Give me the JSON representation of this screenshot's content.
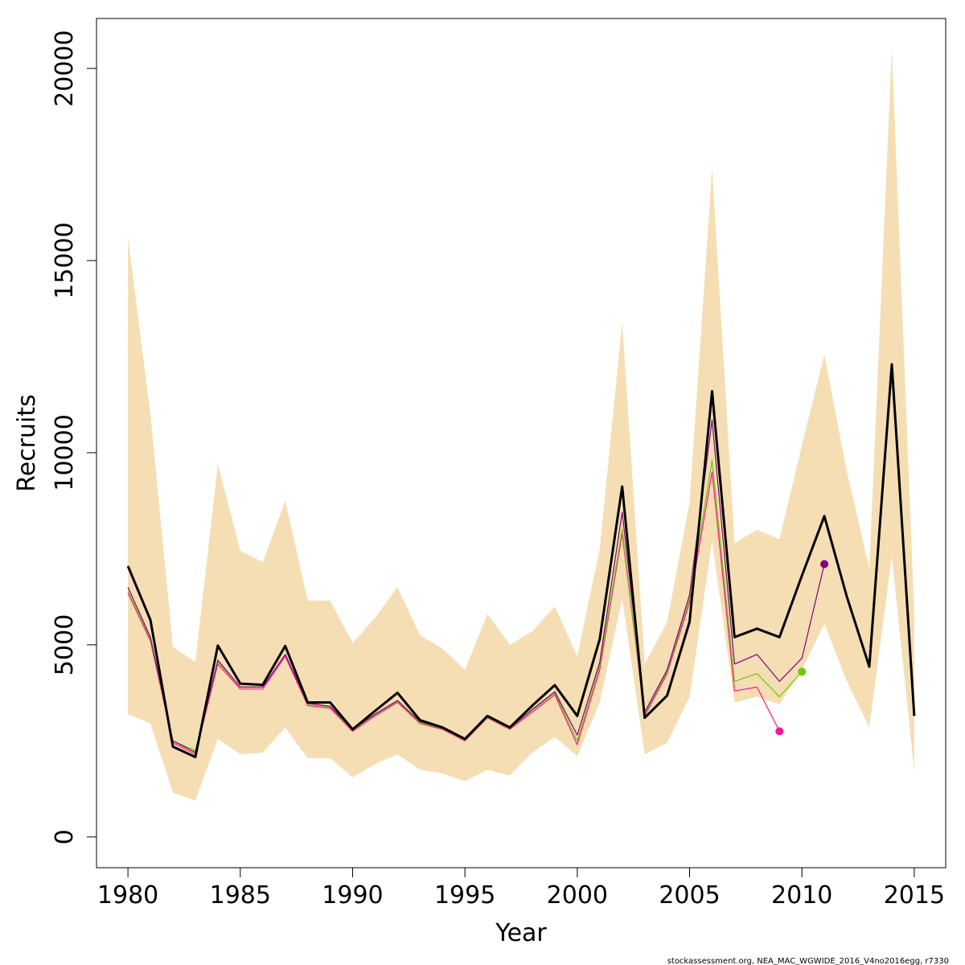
{
  "chart_data": {
    "type": "line",
    "xlabel": "Year",
    "ylabel": "Recruits",
    "footer": "stockassessment.org, NEA_MAC_WGWIDE_2016_V4no2016egg, r7330",
    "xlim": [
      1978.6,
      2016.4
    ],
    "ylim": [
      -800,
      21300
    ],
    "x_ticks": [
      1980,
      1985,
      1990,
      1995,
      2000,
      2005,
      2010,
      2015
    ],
    "y_ticks": [
      0,
      5000,
      10000,
      15000,
      20000
    ],
    "years": [
      1980,
      1981,
      1982,
      1983,
      1984,
      1985,
      1986,
      1987,
      1988,
      1989,
      1990,
      1991,
      1992,
      1993,
      1994,
      1995,
      1996,
      1997,
      1998,
      1999,
      2000,
      2001,
      2002,
      2003,
      2004,
      2005,
      2006,
      2007,
      2008,
      2009,
      2010,
      2011,
      2012,
      2013,
      2014,
      2015
    ],
    "band": {
      "color": "#f5deb3",
      "upper": [
        15600,
        11000,
        4950,
        4550,
        9700,
        7450,
        7150,
        8750,
        6150,
        6150,
        5050,
        5700,
        6500,
        5250,
        4900,
        4350,
        5800,
        5000,
        5350,
        6000,
        4700,
        7500,
        13400,
        4500,
        5600,
        8700,
        17400,
        7650,
        7990,
        7750,
        10200,
        12550,
        9500,
        7000,
        20500,
        5800
      ],
      "lower": [
        3200,
        2950,
        1150,
        950,
        2550,
        2150,
        2200,
        2850,
        2050,
        2050,
        1550,
        1900,
        2150,
        1750,
        1650,
        1450,
        1750,
        1600,
        2200,
        2600,
        2100,
        3500,
        6200,
        2150,
        2450,
        3650,
        7700,
        3500,
        3650,
        3450,
        4350,
        5550,
        4050,
        2850,
        7300,
        1700
      ]
    },
    "series": [
      {
        "color": "#000000",
        "x": [
          1980,
          1981,
          1982,
          1983,
          1984,
          1985,
          1986,
          1987,
          1988,
          1989,
          1990,
          1991,
          1992,
          1993,
          1994,
          1995,
          1996,
          1997,
          1998,
          1999,
          2000,
          2001,
          2002,
          2003,
          2004,
          2005,
          2006,
          2007,
          2008,
          2009,
          2010,
          2011,
          2012,
          2013,
          2014,
          2015
        ],
        "y": [
          7050,
          5650,
          2350,
          2080,
          4980,
          3990,
          3960,
          4970,
          3500,
          3500,
          2800,
          3280,
          3750,
          3040,
          2850,
          2550,
          3150,
          2850,
          3420,
          3950,
          3150,
          5150,
          9120,
          3100,
          3680,
          5600,
          11600,
          5200,
          5420,
          5200,
          6800,
          8350,
          6250,
          4430,
          12300,
          3150
        ],
        "width": 3
      },
      {
        "color": "#ff1493",
        "x": [
          1980,
          1981,
          1982,
          1983,
          1984,
          1985,
          1986,
          1987,
          1988,
          1989,
          1990,
          1991,
          1992,
          1993,
          1994,
          1995,
          1996,
          1997,
          1998,
          1999,
          2000,
          2001,
          2002,
          2003,
          2004,
          2005,
          2006,
          2007,
          2008,
          2009
        ],
        "y": [
          6350,
          5100,
          2450,
          2150,
          4500,
          3850,
          3850,
          4700,
          3420,
          3350,
          2750,
          3150,
          3500,
          2950,
          2800,
          2500,
          3100,
          2800,
          3250,
          3700,
          2400,
          4350,
          7900,
          3150,
          4250,
          6100,
          9500,
          3800,
          3900,
          2750
        ],
        "width": 1.2,
        "end_marker": true
      },
      {
        "color": "#66cc00",
        "x": [
          1980,
          1981,
          1982,
          1983,
          1984,
          1985,
          1986,
          1987,
          1988,
          1989,
          1990,
          1991,
          1992,
          1993,
          1994,
          1995,
          1996,
          1997,
          1998,
          1999,
          2000,
          2001,
          2002,
          2003,
          2004,
          2005,
          2006,
          2007,
          2008,
          2009,
          2010
        ],
        "y": [
          6400,
          5150,
          2500,
          2250,
          4550,
          3900,
          3900,
          4750,
          3460,
          3380,
          2780,
          3180,
          3530,
          2970,
          2820,
          2520,
          3120,
          2820,
          3300,
          3750,
          2500,
          4450,
          8000,
          3200,
          4300,
          6200,
          9800,
          4050,
          4250,
          3650,
          4300
        ],
        "width": 1.2,
        "end_marker": true
      },
      {
        "color": "#800080",
        "x": [
          1980,
          1981,
          1982,
          1983,
          1984,
          1985,
          1986,
          1987,
          1988,
          1989,
          1990,
          1991,
          1992,
          1993,
          1994,
          1995,
          1996,
          1997,
          1998,
          1999,
          2000,
          2001,
          2002,
          2003,
          2004,
          2005,
          2006,
          2007,
          2008,
          2009,
          2010,
          2011
        ],
        "y": [
          6500,
          5200,
          2500,
          2200,
          4600,
          3900,
          3900,
          4750,
          3480,
          3400,
          2800,
          3200,
          3550,
          3000,
          2830,
          2530,
          3130,
          2830,
          3320,
          3780,
          2650,
          4550,
          8450,
          3250,
          4350,
          6300,
          10850,
          4500,
          4750,
          4050,
          4650,
          7100
        ],
        "width": 1.2,
        "end_marker": true
      }
    ]
  }
}
